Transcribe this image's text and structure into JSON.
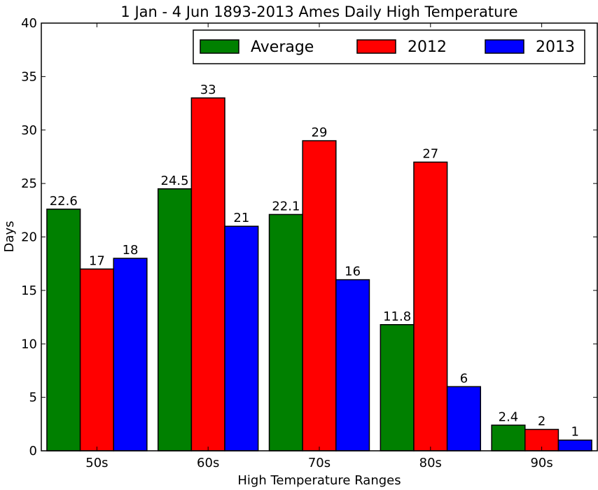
{
  "chart_data": {
    "type": "bar",
    "title": "1 Jan - 4 Jun 1893-2013 Ames Daily High Temperature",
    "xlabel": "High Temperature Ranges",
    "ylabel": "Days",
    "categories": [
      "50s",
      "60s",
      "70s",
      "80s",
      "90s"
    ],
    "ylim": [
      0,
      40
    ],
    "yticks": [
      0,
      5,
      10,
      15,
      20,
      25,
      30,
      35,
      40
    ],
    "legend_position": "top-right",
    "grid": false,
    "series": [
      {
        "name": "Average",
        "color": "#008000",
        "values": [
          22.6,
          24.5,
          22.1,
          11.8,
          2.4
        ],
        "labels": [
          "22.6",
          "24.5",
          "22.1",
          "11.8",
          "2.4"
        ]
      },
      {
        "name": "2012",
        "color": "#ff0000",
        "values": [
          17,
          33,
          29,
          27,
          2
        ],
        "labels": [
          "17",
          "33",
          "29",
          "27",
          "2"
        ]
      },
      {
        "name": "2013",
        "color": "#0000ff",
        "values": [
          18,
          21,
          16,
          6,
          1
        ],
        "labels": [
          "18",
          "21",
          "16",
          "6",
          "1"
        ]
      }
    ]
  }
}
